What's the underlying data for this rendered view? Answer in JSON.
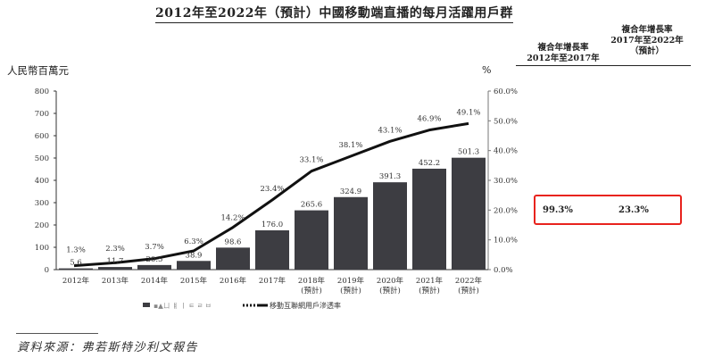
{
  "title": "2012年至2022年（預計）中國移動端直播的每月活躍用戶群",
  "left_unit": "人民幣百萬元",
  "right_unit": "%",
  "cagr": {
    "col1_label": [
      "複合年增長率",
      "2012年至2017年"
    ],
    "col2_label": [
      "複合年增長率",
      "2017年至2022年",
      "（預計）"
    ],
    "col1_value": "99.3%",
    "col2_value": "23.3%",
    "highlight_color": "#e8231d"
  },
  "source": "資料來源：弗若斯特沙利文報告",
  "chart_data": {
    "type": "bar",
    "title": "2012年至2022年（預計）中國移動端直播的每月活躍用戶群",
    "categories": [
      [
        "2012年"
      ],
      [
        "2013年"
      ],
      [
        "2014年"
      ],
      [
        "2015年"
      ],
      [
        "2016年"
      ],
      [
        "2017年"
      ],
      [
        "2018年",
        "(預計)"
      ],
      [
        "2019年",
        "(預計)"
      ],
      [
        "2020年",
        "(預計)"
      ],
      [
        "2021年",
        "(預計)"
      ],
      [
        "2022年",
        "(預計)"
      ]
    ],
    "ylabel": "人民幣百萬元",
    "y2label": "%",
    "ylim": [
      0,
      800
    ],
    "yticks": [
      0,
      100,
      200,
      300,
      400,
      500,
      600,
      700,
      800
    ],
    "y2lim": [
      0,
      60
    ],
    "y2ticks": [
      "0.0%",
      "10.0%",
      "20.0%",
      "30.0%",
      "40.0%",
      "50.0%",
      "60.0%"
    ],
    "grid": false,
    "legend_position": "bottom-center",
    "series": [
      {
        "name": "",
        "type": "bar",
        "axis": "left",
        "color": "#3d3d42",
        "values": [
          5.6,
          11.7,
          20.5,
          38.9,
          98.6,
          176.0,
          265.6,
          324.9,
          391.3,
          452.2,
          501.3
        ],
        "labels": [
          "5.6",
          "11.7",
          "20.5",
          "38.9",
          "98.6",
          "176.0",
          "265.6",
          "324.9",
          "391.3",
          "452.2",
          "501.3"
        ]
      },
      {
        "name": "移動互聯網用戶滲透率",
        "type": "line",
        "axis": "right",
        "color": "#111111",
        "values": [
          1.3,
          2.3,
          3.7,
          6.3,
          14.2,
          23.4,
          33.1,
          38.1,
          43.1,
          46.9,
          49.1
        ],
        "labels": [
          "1.3%",
          "2.3%",
          "3.7%",
          "6.3%",
          "14.2%",
          "23.4%",
          "33.1%",
          "38.1%",
          "43.1%",
          "46.9%",
          "49.1%"
        ]
      }
    ],
    "legend": [
      {
        "label": "▪▲ㄩ ㅒ ㅣ ㅌ ㄹ ㅂ",
        "marker": "bar",
        "note": "garbled in source"
      },
      {
        "label": "移動互聯網用戶滲透率",
        "marker": "line"
      }
    ]
  }
}
